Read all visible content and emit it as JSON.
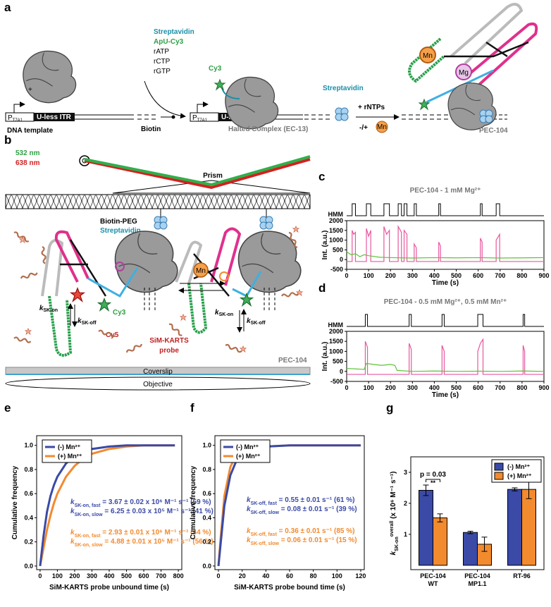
{
  "panel_labels": {
    "a": "a",
    "b": "b",
    "c": "c",
    "d": "d",
    "e": "e",
    "f": "f",
    "g": "g"
  },
  "diagram_a": {
    "promoter": {
      "main": "P",
      "sub": "T7A1"
    },
    "itr": "U-less ITR",
    "template": "DNA template",
    "plus": "+",
    "biotin": "Biotin",
    "reagents": [
      "Streptavidin",
      "ApU-Cy3",
      "rATP",
      "rCTP",
      "rGTP"
    ],
    "cy3": "Cy3",
    "streptavidin": "Streptavidin",
    "halted": "Halted Complex (EC-13)",
    "rntps": "+ rNTPs",
    "minus_plus": "-/+",
    "mn": "Mn",
    "pec_mn": "Mn",
    "pec_mg": "Mg",
    "pec": "PEC-104"
  },
  "diagram_b": {
    "laser_green": "532 nm",
    "laser_red": "638 nm",
    "prism": "Prism",
    "biotin_peg": "Biotin-PEG",
    "streptavidin": "Streptavidin",
    "mn": "Mn",
    "cy3": "Cy3",
    "k_on": {
      "main": "k",
      "sub": "SK-on"
    },
    "k_off": {
      "main": "k",
      "sub": "SK-off"
    },
    "cy5": "Cy5",
    "probe": [
      "SiM-KARTS",
      "probe"
    ],
    "pec": "PEC-104",
    "coverslip": "Coverslip",
    "objective": "Objective"
  },
  "chart_data": [
    {
      "type": "line",
      "title": "PEC-104 - 1 mM Mg²⁺",
      "x_label": "Time (s)",
      "y_label": "Int. (a.u.)",
      "xlim": [
        0,
        900
      ],
      "xticks": [
        0,
        100,
        200,
        300,
        400,
        500,
        600,
        700,
        800,
        900
      ],
      "ylim": [
        -500,
        2000
      ],
      "yticks": [
        -500,
        0,
        500,
        1000,
        1500,
        2000
      ],
      "hmm": {
        "label": "HMM",
        "x": [
          0,
          25,
          25,
          40,
          40,
          90,
          90,
          110,
          110,
          170,
          170,
          195,
          195,
          235,
          235,
          250,
          250,
          262,
          262,
          275,
          275,
          308,
          308,
          318,
          318,
          420,
          420,
          428,
          428,
          610,
          610,
          618,
          618,
          682,
          682,
          698,
          698,
          900
        ],
        "values": [
          0,
          0,
          1,
          1,
          0,
          0,
          1,
          1,
          0,
          0,
          1,
          1,
          0,
          0,
          1,
          1,
          0,
          0,
          1,
          1,
          0,
          0,
          1,
          1,
          0,
          0,
          1,
          1,
          0,
          0,
          1,
          1,
          0,
          0,
          1,
          1,
          0,
          0
        ]
      },
      "series": [
        {
          "color": "#e8579f",
          "x": [
            0,
            25,
            25,
            32,
            40,
            40,
            90,
            90,
            100,
            110,
            110,
            170,
            170,
            182,
            195,
            195,
            235,
            235,
            250,
            250,
            262,
            262,
            275,
            275,
            308,
            308,
            318,
            318,
            420,
            420,
            428,
            428,
            610,
            610,
            618,
            618,
            682,
            682,
            698,
            698,
            900
          ],
          "values": [
            -100,
            -100,
            1500,
            1300,
            1400,
            -100,
            -100,
            1600,
            1200,
            1500,
            -100,
            -100,
            1700,
            1300,
            1500,
            -100,
            -100,
            1700,
            1400,
            -100,
            -100,
            1500,
            1300,
            -100,
            -100,
            800,
            600,
            -100,
            -100,
            900,
            700,
            -100,
            -100,
            1100,
            900,
            -100,
            -100,
            1000,
            1300,
            -100,
            -100
          ]
        },
        {
          "color": "#5fc23a",
          "x": [
            0,
            20,
            40,
            60,
            80,
            100,
            150,
            200,
            300,
            400,
            500,
            600,
            700,
            800,
            900
          ],
          "values": [
            400,
            250,
            300,
            150,
            250,
            200,
            120,
            100,
            80,
            100,
            90,
            100,
            80,
            90,
            100
          ]
        }
      ]
    },
    {
      "type": "line",
      "title": "PEC-104 - 0.5 mM Mg²⁺, 0.5 mM Mn²⁺",
      "x_label": "Time (s)",
      "y_label": "Int. (a.u.)",
      "xlim": [
        0,
        900
      ],
      "xticks": [
        0,
        100,
        200,
        300,
        400,
        500,
        600,
        700,
        800,
        900
      ],
      "ylim": [
        -500,
        2000
      ],
      "yticks": [
        -500,
        0,
        500,
        1000,
        1500,
        2000
      ],
      "hmm": {
        "label": "HMM",
        "x": [
          0,
          85,
          85,
          95,
          95,
          285,
          285,
          295,
          295,
          435,
          435,
          445,
          445,
          598,
          598,
          622,
          622,
          805,
          805,
          812,
          812,
          900
        ],
        "values": [
          0,
          0,
          1,
          1,
          0,
          0,
          1,
          1,
          0,
          0,
          1,
          1,
          0,
          0,
          1,
          1,
          0,
          0,
          1,
          1,
          0,
          0
        ]
      },
      "series": [
        {
          "color": "#e8579f",
          "x": [
            0,
            85,
            85,
            95,
            95,
            285,
            285,
            295,
            295,
            435,
            435,
            445,
            445,
            598,
            598,
            610,
            622,
            622,
            805,
            805,
            812,
            812,
            900
          ],
          "values": [
            -150,
            -150,
            1500,
            1200,
            -150,
            -150,
            1400,
            1100,
            -150,
            -150,
            1300,
            1000,
            -150,
            -150,
            1000,
            1400,
            1600,
            -150,
            -150,
            1300,
            1000,
            -150,
            -150
          ]
        },
        {
          "color": "#5fc23a",
          "x": [
            0,
            80,
            90,
            120,
            160,
            200,
            220,
            230,
            300,
            400,
            500,
            600,
            700,
            800,
            900
          ],
          "values": [
            150,
            100,
            400,
            350,
            300,
            350,
            300,
            50,
            0,
            20,
            0,
            10,
            0,
            20,
            0
          ]
        }
      ]
    },
    {
      "type": "line",
      "x_label": "SiM-KARTS probe unbound time (s)",
      "y_label": "Cumulative frequency",
      "xlim": [
        -20,
        820
      ],
      "xticks": [
        0,
        100,
        200,
        300,
        400,
        500,
        600,
        700,
        800
      ],
      "ylim": [
        -0.03,
        1.08
      ],
      "yticks": [
        {
          "value": 0,
          "label": "0.0"
        },
        0.2,
        0.4,
        0.6,
        0.8,
        {
          "value": 1,
          "label": "1.0"
        }
      ],
      "legend": "upper left",
      "series": [
        {
          "name": "(-) Mn²⁺",
          "color": "#3a4aa6",
          "x": [
            0,
            20,
            40,
            60,
            80,
            100,
            150,
            200,
            250,
            300,
            400,
            500,
            600,
            700,
            780
          ],
          "values": [
            0,
            0.25,
            0.45,
            0.58,
            0.67,
            0.74,
            0.85,
            0.91,
            0.95,
            0.97,
            0.99,
            1,
            1,
            1,
            1
          ]
        },
        {
          "name": "(+) Mn²⁺",
          "color": "#f28a2e",
          "x": [
            0,
            20,
            40,
            60,
            80,
            100,
            150,
            200,
            250,
            300,
            400,
            500,
            600,
            700,
            780
          ],
          "values": [
            0,
            0.15,
            0.3,
            0.42,
            0.52,
            0.6,
            0.74,
            0.83,
            0.89,
            0.93,
            0.97,
            0.99,
            1,
            1,
            1
          ]
        }
      ],
      "annotations": [
        {
          "main": "k",
          "sub": "SK-on, fast",
          "rest": " = 3.67 ± 0.02 x 10⁶ M⁻¹ s⁻¹ (59 %)",
          "color": "#3a4aa6"
        },
        {
          "main": "k",
          "sub": "SK-on, slow",
          "rest": " = 6.25 ± 0.03 x 10⁵ M⁻¹ s⁻¹ (41 %)",
          "color": "#3a4aa6"
        },
        {
          "main": "k",
          "sub": "SK-on, fast",
          "rest": " = 2.93 ± 0.01 x 10⁶ M⁻¹ s⁻¹ (44 %)",
          "color": "#f28a2e"
        },
        {
          "main": "k",
          "sub": "SK-on, slow",
          "rest": " = 4.88 ± 0.01 x 10⁵ M⁻¹ s⁻¹ (56 %)",
          "color": "#f28a2e"
        }
      ]
    },
    {
      "type": "line",
      "x_label": "SiM-KARTS probe bound time (s)",
      "y_label": "Cumulative frequency",
      "xlim": [
        -3,
        123
      ],
      "xticks": [
        0,
        20,
        40,
        60,
        80,
        100,
        120
      ],
      "ylim": [
        -0.03,
        1.08
      ],
      "yticks": [
        {
          "value": 0,
          "label": "0.0"
        },
        0.2,
        0.4,
        0.6,
        0.8,
        {
          "value": 1,
          "label": "1.0"
        }
      ],
      "legend": "upper left",
      "series": [
        {
          "name": "(-) Mn²⁺",
          "color": "#3a4aa6",
          "x": [
            0,
            2,
            5,
            10,
            15,
            20,
            30,
            40,
            60,
            80,
            100,
            120
          ],
          "values": [
            0,
            0.2,
            0.5,
            0.75,
            0.87,
            0.93,
            0.97,
            0.99,
            1,
            1,
            1,
            1
          ]
        },
        {
          "name": "(+) Mn²⁺",
          "color": "#f28a2e",
          "x": [
            0,
            2,
            5,
            10,
            15,
            20,
            30,
            40,
            60,
            80,
            100,
            120
          ],
          "values": [
            0,
            0.25,
            0.58,
            0.82,
            0.92,
            0.96,
            0.98,
            0.99,
            1,
            1,
            1,
            1
          ]
        }
      ],
      "annotations": [
        {
          "main": "k",
          "sub": "SK-off, fast",
          "rest": " = 0.55 ± 0.01 s⁻¹ (61 %)",
          "color": "#3a4aa6"
        },
        {
          "main": "k",
          "sub": "SK-off, slow",
          "rest": " = 0.08 ± 0.01 s⁻¹ (39 %)",
          "color": "#3a4aa6"
        },
        {
          "main": "k",
          "sub": "SK-off, fast",
          "rest": " = 0.36 ± 0.01 s⁻¹ (85 %)",
          "color": "#f28a2e"
        },
        {
          "main": "k",
          "sub": "SK-off, slow",
          "rest": " = 0.06 ± 0.01 s⁻¹ (15 %)",
          "color": "#f28a2e"
        }
      ]
    },
    {
      "type": "bar",
      "y_label": {
        "main": "k",
        "sub": "SK-on",
        "sup": "overall",
        "rest": " (x 10⁶ M⁻¹ s⁻¹)"
      },
      "categories": [
        [
          "PEC-104",
          "WT"
        ],
        [
          "PEC-104",
          "MP1.1"
        ],
        [
          "RT-96"
        ]
      ],
      "ylim": [
        -0.14,
        3.5
      ],
      "yticks": [
        1,
        2,
        3
      ],
      "legend": "upper right",
      "series": [
        {
          "name": "(-) Mn²⁺",
          "color": "#3a4aa6",
          "values": [
            2.42,
            1.06,
            2.45
          ],
          "errors": [
            0.17,
            0.04,
            0.05
          ]
        },
        {
          "name": "(+) Mn²⁺",
          "color": "#f28a2e",
          "values": [
            1.53,
            0.68,
            2.45
          ],
          "errors": [
            0.13,
            0.23,
            0.3
          ]
        }
      ],
      "annotations": {
        "p": "p = 0.03",
        "stars": "**"
      }
    }
  ]
}
